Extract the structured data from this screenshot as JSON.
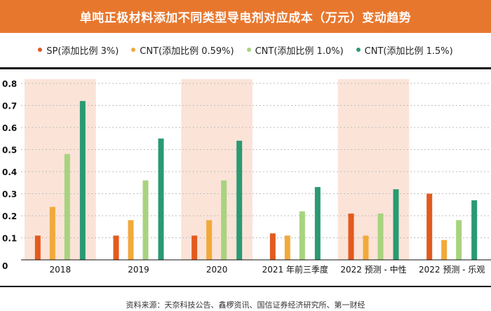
{
  "title": "单吨正极材料添加不同类型导电剂对应成本（万元）变动趋势",
  "source": "资料来源：天奈科技公告、鑫椤资讯、国信证券经济研究所、第一财经",
  "colors": {
    "header_bg": "#e8772e",
    "highlight_band": "#fbe3d8",
    "series": [
      "#e35a1e",
      "#f2a93b",
      "#a8d37f",
      "#2a9a72"
    ]
  },
  "chart_data": {
    "type": "bar",
    "title": "单吨正极材料添加不同类型导电剂对应成本（万元）变动趋势",
    "xlabel": "",
    "ylabel": "",
    "categories": [
      "2018",
      "2019",
      "2020",
      "2021 年前三季度",
      "2022 预测 - 中性",
      "2022 预测 - 乐观"
    ],
    "series": [
      {
        "name": "SP(添加比例 3%)",
        "values": [
          0.11,
          0.11,
          0.11,
          0.12,
          0.21,
          0.3
        ]
      },
      {
        "name": "CNT(添加比例 0.59%)",
        "values": [
          0.24,
          0.18,
          0.18,
          0.11,
          0.11,
          0.09
        ]
      },
      {
        "name": "CNT(添加比例 1.0%)",
        "values": [
          0.48,
          0.36,
          0.36,
          0.22,
          0.21,
          0.18
        ]
      },
      {
        "name": "CNT(添加比例 1.5%)",
        "values": [
          0.72,
          0.55,
          0.54,
          0.33,
          0.32,
          0.27
        ]
      }
    ],
    "ylim": [
      0,
      0.8
    ],
    "yticks": [
      "0",
      "0.1",
      "0.2",
      "0.3",
      "0.4",
      "0.5",
      "0.6",
      "0.7",
      "0.8"
    ],
    "grid": true,
    "legend_position": "top",
    "highlighted_categories": [
      0,
      2,
      4
    ]
  }
}
